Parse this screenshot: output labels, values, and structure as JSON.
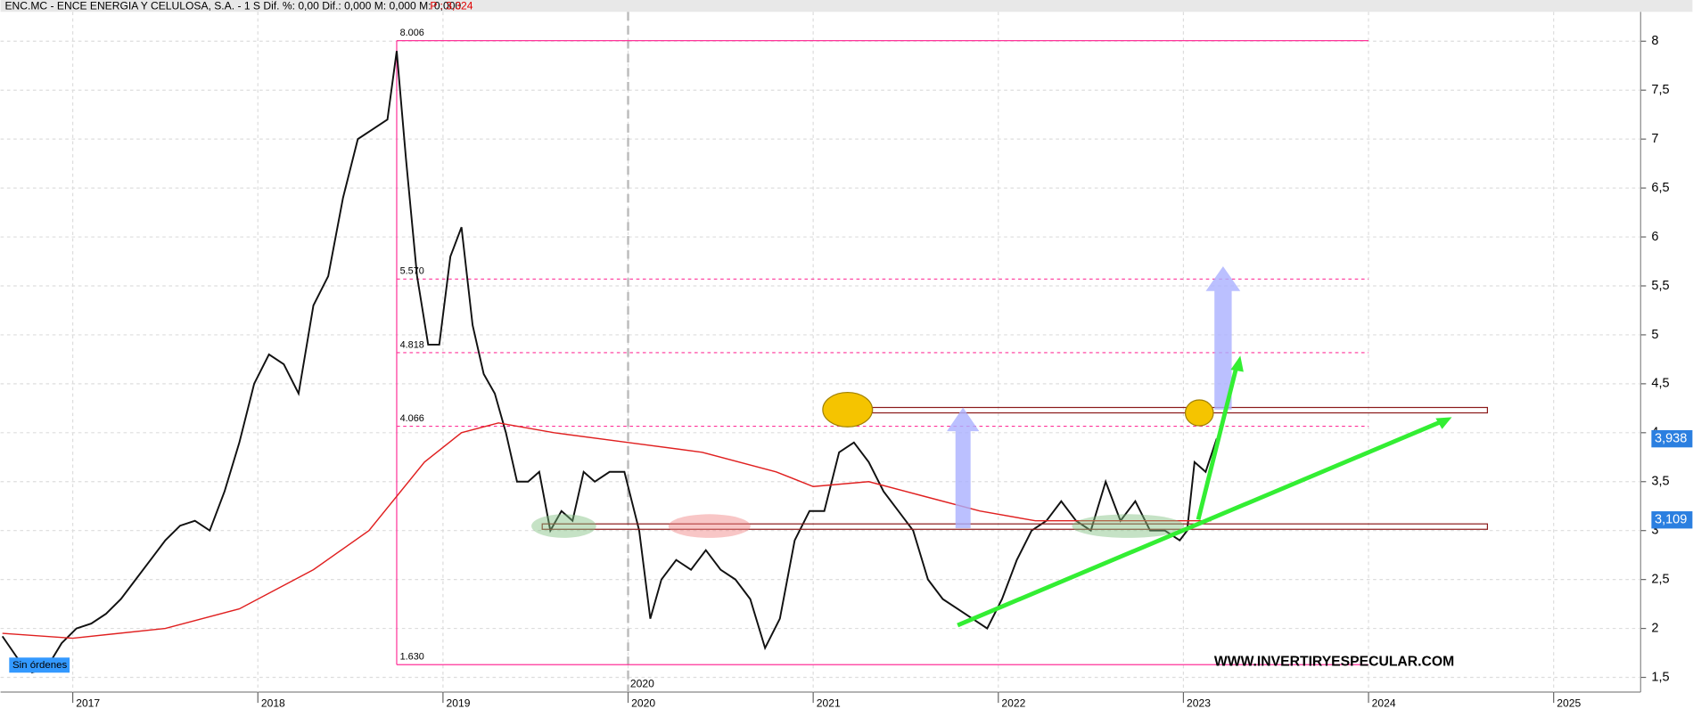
{
  "chart_data": {
    "type": "line",
    "title": "ENC.MC - ENCE ENERGIA Y CELULOSA, S.A. -  1 S  Dif. %: 0,00  Dif.: 0,000  M: 0,000  M: 0,000",
    "price_label": "P : 3,324",
    "badge": "Sin órdenes",
    "watermark": "WWW.INVERTIRYESPECULAR.COM",
    "xlim": [
      2016.61,
      2025.47
    ],
    "xticks": [
      2017,
      2018,
      2019,
      2020,
      2021,
      2022,
      2023,
      2024,
      2025
    ],
    "ylim": [
      1.35,
      8.3
    ],
    "yticks": [
      {
        "value": 1.5,
        "label": "1,5"
      },
      2,
      {
        "value": 2.5,
        "label": "2,5"
      },
      3,
      {
        "value": 3.5,
        "label": "3,5"
      },
      4,
      {
        "value": 4.5,
        "label": "4,5"
      },
      5,
      {
        "value": 5.5,
        "label": "5,5"
      },
      6,
      {
        "value": 6.5,
        "label": "6,5"
      },
      7,
      {
        "value": 7.5,
        "label": "7,5"
      },
      8
    ],
    "grid": true,
    "cursor_x": 2020,
    "levels": [
      8.006,
      {
        "value": 5.57,
        "label": "5.570"
      },
      4.818,
      4.066,
      {
        "value": 1.63,
        "label": "1.630"
      }
    ],
    "last_values": [
      {
        "value": 3.938,
        "label": "3,938"
      },
      {
        "value": 3.109,
        "label": "3,109"
      }
    ],
    "series": [
      {
        "color": "#111111",
        "x": [
          2016.62,
          2016.7,
          2016.78,
          2016.86,
          2016.94,
          2017.02,
          2017.1,
          2017.18,
          2017.26,
          2017.34,
          2017.42,
          2017.5,
          2017.58,
          2017.66,
          2017.74,
          2017.82,
          2017.9,
          2017.98,
          2018.06,
          2018.14,
          2018.22,
          2018.3,
          2018.38,
          2018.46,
          2018.54,
          2018.62,
          2018.7,
          2018.75,
          2018.8,
          2018.86,
          2018.92,
          2018.98,
          2019.04,
          2019.1,
          2019.16,
          2019.22,
          2019.28,
          2019.34,
          2019.4,
          2019.46,
          2019.52,
          2019.58,
          2019.64,
          2019.7,
          2019.76,
          2019.82,
          2019.9,
          2019.98,
          2020.06,
          2020.12,
          2020.18,
          2020.26,
          2020.34,
          2020.42,
          2020.5,
          2020.58,
          2020.66,
          2020.74,
          2020.82,
          2020.9,
          2020.98,
          2021.06,
          2021.14,
          2021.22,
          2021.3,
          2021.38,
          2021.46,
          2021.54,
          2021.62,
          2021.7,
          2021.78,
          2021.86,
          2021.94,
          2022.02,
          2022.1,
          2022.18,
          2022.26,
          2022.34,
          2022.42,
          2022.5,
          2022.58,
          2022.66,
          2022.74,
          2022.82,
          2022.9,
          2022.98,
          2023.02,
          2023.06,
          2023.12,
          2023.18
        ],
        "values": [
          1.92,
          1.7,
          1.55,
          1.6,
          1.85,
          2.0,
          2.05,
          2.15,
          2.3,
          2.5,
          2.7,
          2.9,
          3.05,
          3.1,
          3.0,
          3.4,
          3.9,
          4.5,
          4.8,
          4.7,
          4.4,
          5.3,
          5.6,
          6.4,
          7.0,
          7.1,
          7.2,
          7.9,
          6.8,
          5.6,
          4.9,
          4.9,
          5.8,
          6.1,
          5.1,
          4.6,
          4.4,
          4.0,
          3.5,
          3.5,
          3.6,
          3.0,
          3.2,
          3.1,
          3.6,
          3.5,
          3.6,
          3.6,
          3.0,
          2.1,
          2.5,
          2.7,
          2.6,
          2.8,
          2.6,
          2.5,
          2.3,
          1.8,
          2.1,
          2.9,
          3.2,
          3.2,
          3.8,
          3.9,
          3.7,
          3.4,
          3.2,
          3.0,
          2.5,
          2.3,
          2.2,
          2.1,
          2.0,
          2.3,
          2.7,
          3.0,
          3.1,
          3.3,
          3.1,
          3.0,
          3.5,
          3.1,
          3.3,
          3.0,
          3.0,
          2.9,
          3.0,
          3.7,
          3.6,
          3.94
        ]
      },
      {
        "color": "#e02020",
        "x": [
          2016.62,
          2017.0,
          2017.5,
          2017.9,
          2018.3,
          2018.6,
          2018.9,
          2019.1,
          2019.3,
          2019.6,
          2020.0,
          2020.4,
          2020.8,
          2021.0,
          2021.3,
          2021.6,
          2021.9,
          2022.2,
          2022.6,
          2022.9,
          2023.15
        ],
        "values": [
          1.95,
          1.9,
          2.0,
          2.2,
          2.6,
          3.0,
          3.7,
          4.0,
          4.1,
          4.0,
          3.9,
          3.8,
          3.6,
          3.45,
          3.5,
          3.35,
          3.2,
          3.1,
          3.1,
          3.1,
          3.1
        ]
      }
    ]
  }
}
